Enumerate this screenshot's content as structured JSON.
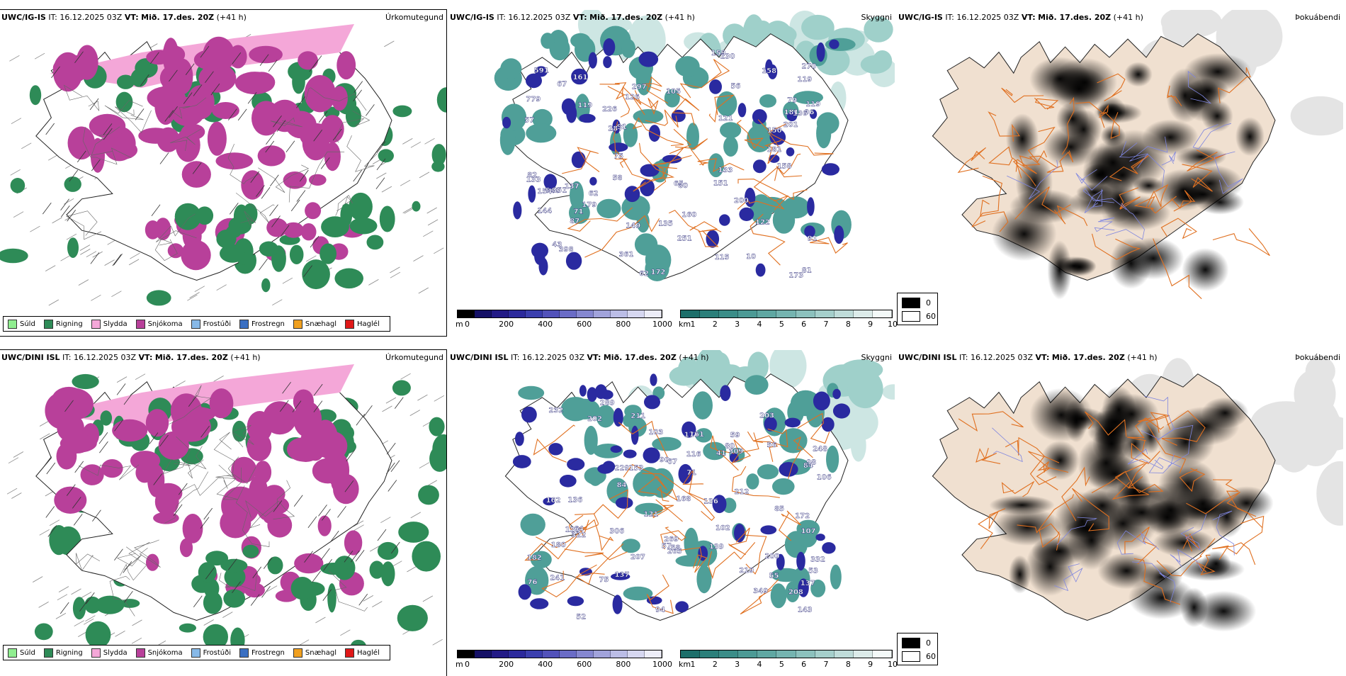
{
  "rows": [
    {
      "model": "UWC/IG-IS",
      "it_label": "IT:",
      "it_value": "16.12.2025 03Z",
      "vt_label": "VT:",
      "vt_value": "Mið. 17.des. 20Z",
      "lead": "(+41 h)",
      "vis_values": [
        "591",
        "173",
        "105",
        "270",
        "398",
        "172",
        "361",
        "135",
        "58",
        "297",
        "779",
        "96",
        "10",
        "133",
        "158",
        "136",
        "161",
        "115",
        "81",
        "122",
        "75",
        "62",
        "67",
        "87",
        "126",
        "151",
        "144",
        "80",
        "200",
        "181",
        "91",
        "119",
        "540",
        "133",
        "57",
        "71",
        "119",
        "154",
        "226",
        "158",
        "179",
        "230",
        "65",
        "91",
        "56",
        "181",
        "79",
        "43",
        "137",
        "159",
        "160",
        "121",
        "82",
        "62",
        "201",
        "351",
        "287",
        "150",
        "119",
        "251",
        "149"
      ],
      "dew_scale": "0",
      "dew_scale_high": "60"
    },
    {
      "model": "UWC/DINI ISL",
      "it_label": "IT:",
      "it_value": "16.12.2025 03Z",
      "vt_label": "VT:",
      "vt_value": "Mið. 17.des. 20Z",
      "lead": "(+41 h)",
      "vis_values": [
        "265",
        "202",
        "136",
        "121",
        "200",
        "289",
        "128",
        "349",
        "137",
        "180",
        "182",
        "322",
        "76",
        "106",
        "116",
        "207",
        "172",
        "143",
        "306",
        "241",
        "229",
        "219",
        "139",
        "56",
        "52",
        "55",
        "203",
        "232",
        "212",
        "168",
        "177",
        "84",
        "71",
        "59",
        "309",
        "162",
        "211",
        "137",
        "208",
        "332",
        "269",
        "248",
        "161",
        "103",
        "102",
        "90",
        "85",
        "80",
        "58",
        "57",
        "75",
        "94",
        "107",
        "67",
        "53",
        "41",
        "64",
        "84",
        "136",
        "98",
        "153"
      ],
      "dew_scale": "0",
      "dew_scale_high": "60"
    }
  ],
  "panel_titles": {
    "precip": "Úrkomutegund",
    "vis": "Skyggni",
    "dew": "Þokuábendi"
  },
  "precip_legend": [
    {
      "label": "Súld",
      "color": "#90ee90"
    },
    {
      "label": "Rigning",
      "color": "#2e8b57"
    },
    {
      "label": "Slydda",
      "color": "#f4a7d8"
    },
    {
      "label": "Snjókoma",
      "color": "#b8409a"
    },
    {
      "label": "Frostúði",
      "color": "#87b9e8"
    },
    {
      "label": "Frostregn",
      "color": "#3a6fc2"
    },
    {
      "label": "Snæhagl",
      "color": "#f0a020"
    },
    {
      "label": "Haglél",
      "color": "#e01818"
    }
  ],
  "elev_bar": {
    "unit": "m",
    "ticks": [
      "0",
      "200",
      "400",
      "600",
      "800",
      "1000"
    ],
    "colors": [
      "#000000",
      "#141066",
      "#221a86",
      "#2c2a9c",
      "#3b3fae",
      "#5252ba",
      "#6a6cc6",
      "#8587d0",
      "#a1a3db",
      "#bbbde6",
      "#d6d7f0",
      "#ededf8"
    ]
  },
  "vis_bar": {
    "unit": "km",
    "ticks": [
      "1",
      "2",
      "3",
      "4",
      "5",
      "6",
      "7",
      "8",
      "9",
      "10"
    ],
    "colors": [
      "#1d6f6a",
      "#2b7f7a",
      "#3b8d88",
      "#4c9a95",
      "#5fa7a2",
      "#75b4b0",
      "#8cc1bd",
      "#a5cfcb",
      "#bfdcd9",
      "#dcebe9",
      "#f3f9f8"
    ]
  },
  "colors": {
    "snow": "#b8409a",
    "rain": "#2e8b57",
    "sleet": "#f4a7d8",
    "drizzle": "#90ee90",
    "fog_teal": "#4f9f98",
    "vis_blue": "#2a2aa0",
    "road": "#e07020",
    "land_dew": "#f0e0d0",
    "river": "#7f86e0"
  }
}
